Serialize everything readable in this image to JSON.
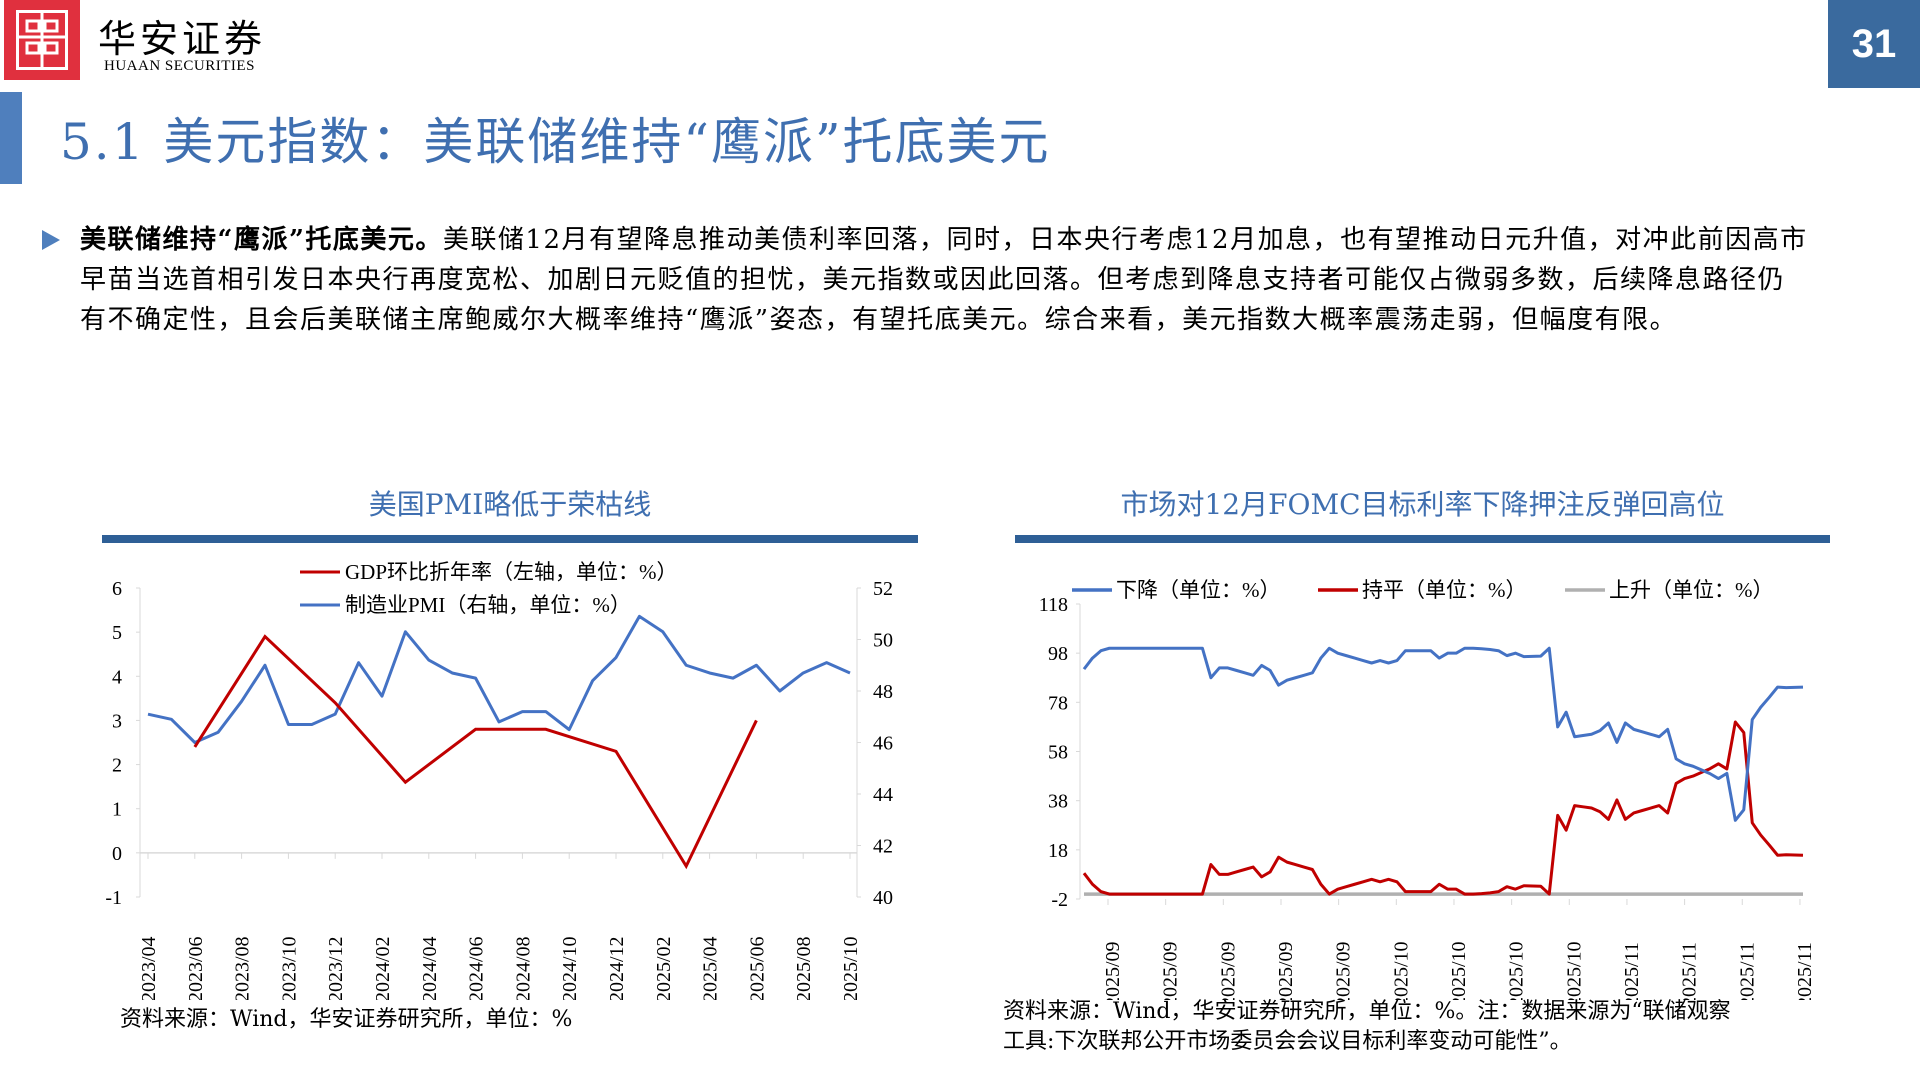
{
  "header": {
    "logo_cn": "华安证券",
    "logo_en": "HUAAN SECURITIES",
    "page_number": "31",
    "brand_color": "#e0303e",
    "accent_color": "#3a6a9e"
  },
  "title": "5.1 美元指数：美联储维持“鹰派”托底美元",
  "paragraph": {
    "lead": "美联储维持“鹰派”托底美元。",
    "body": "美联储12月有望降息推动美债利率回落，同时，日本央行考虑12月加息，也有望推动日元升值，对冲此前因高市早苗当选首相引发日本央行再度宽松、加剧日元贬值的担忧，美元指数或因此回落。但考虑到降息支持者可能仅占微弱多数，后续降息路径仍有不确定性，且会后美联储主席鲍威尔大概率维持“鹰派”姿态，有望托底美元。综合来看，美元指数大概率震荡走弱，但幅度有限。"
  },
  "left_chart": {
    "title": "美国PMI略低于荣枯线",
    "legend": [
      "GDP环比折年率（左轴，单位：%）",
      "制造业PMI（右轴，单位：%）"
    ],
    "source": "资料来源：Wind，华安证券研究所，单位：%"
  },
  "right_chart": {
    "title": "市场对12月FOMC目标利率下降押注反弹回高位",
    "legend": [
      "下降（单位：%）",
      "持平（单位：%）",
      "上升（单位：%）"
    ],
    "source_line1": "资料来源：Wind，华安证券研究所，单位：%。注：数据来源为“联储观察",
    "source_line2": "工具:下次联邦公开市场委员会会议目标利率变动可能性”。"
  },
  "chart_data": [
    {
      "type": "line",
      "title": "美国PMI略低于荣枯线",
      "x_tick_labels": [
        "2023/04",
        "2023/06",
        "2023/08",
        "2023/10",
        "2023/12",
        "2024/02",
        "2024/04",
        "2024/06",
        "2024/08",
        "2024/10",
        "2024/12",
        "2025/02",
        "2025/04",
        "2025/06",
        "2025/08",
        "2025/10"
      ],
      "x": [
        "2023/04",
        "2023/05",
        "2023/06",
        "2023/07",
        "2023/08",
        "2023/09",
        "2023/10",
        "2023/11",
        "2023/12",
        "2024/01",
        "2024/02",
        "2024/03",
        "2024/04",
        "2024/05",
        "2024/06",
        "2024/07",
        "2024/08",
        "2024/09",
        "2024/10",
        "2024/11",
        "2024/12",
        "2025/01",
        "2025/02",
        "2025/03",
        "2025/04",
        "2025/05",
        "2025/06",
        "2025/07",
        "2025/08",
        "2025/09",
        "2025/10"
      ],
      "series": [
        {
          "name": "GDP环比折年率（左轴，单位：%）",
          "axis": "left",
          "color": "#c00000",
          "points": [
            [
              "2023/06",
              2.4
            ],
            [
              "2023/09",
              4.9
            ],
            [
              "2023/12",
              3.4
            ],
            [
              "2024/03",
              1.6
            ],
            [
              "2024/06",
              2.8
            ],
            [
              "2024/09",
              2.8
            ],
            [
              "2024/12",
              2.3
            ],
            [
              "2025/03",
              -0.3
            ],
            [
              "2025/06",
              3.0
            ]
          ]
        },
        {
          "name": "制造业PMI（右轴，单位：%）",
          "axis": "right",
          "color": "#4472c4",
          "values": [
            47.1,
            46.9,
            46.0,
            46.4,
            47.6,
            49.0,
            46.7,
            46.7,
            47.1,
            49.1,
            47.8,
            50.3,
            49.2,
            48.7,
            48.5,
            46.8,
            47.2,
            47.2,
            46.5,
            48.4,
            49.3,
            50.9,
            50.3,
            49.0,
            48.7,
            48.5,
            49.0,
            48.0,
            48.7,
            49.1,
            48.7
          ]
        }
      ],
      "ylim_left": [
        -1,
        6
      ],
      "yticks_left": [
        -1,
        0,
        1,
        2,
        3,
        4,
        5,
        6
      ],
      "ylim_right": [
        40,
        52
      ],
      "yticks_right": [
        40,
        42,
        44,
        46,
        48,
        50,
        52
      ],
      "legend_position": "top",
      "grid": false
    },
    {
      "type": "line",
      "title": "市场对12月FOMC目标利率下降押注反弹回高位",
      "x_tick_labels": [
        "2025/09",
        "2025/09",
        "2025/09",
        "2025/09",
        "2025/09",
        "2025/10",
        "2025/10",
        "2025/10",
        "2025/10",
        "2025/11",
        "2025/11",
        "2025/11",
        "2025/11"
      ],
      "series": [
        {
          "name": "下降（单位：%）",
          "color": "#4472c4",
          "values": [
            91.5,
            96,
            99,
            100,
            100,
            100,
            100,
            100,
            100,
            100,
            100,
            100,
            100,
            100,
            100,
            88,
            92,
            92,
            91,
            90,
            89,
            93,
            91,
            85,
            87,
            88,
            89,
            90,
            96,
            100,
            98,
            97,
            96,
            95,
            94,
            95,
            94,
            95,
            99,
            99,
            99,
            99,
            96,
            98,
            98,
            100,
            100,
            99.8,
            99.5,
            99,
            97,
            98,
            96.6,
            96.7,
            96.8,
            100,
            68,
            74,
            64,
            64.5,
            65,
            66.5,
            69.6,
            61.7,
            69.6,
            67,
            66,
            65,
            64,
            67,
            55,
            53,
            52,
            50.5,
            49,
            47,
            49.1,
            30,
            34.3,
            71,
            76,
            80,
            84.2,
            84,
            84.1,
            84.2
          ]
        },
        {
          "name": "持平（单位：%）",
          "color": "#c00000",
          "values": [
            8.5,
            4,
            1,
            0,
            0,
            0,
            0,
            0,
            0,
            0,
            0,
            0,
            0,
            0,
            0,
            12,
            8,
            8,
            9,
            10,
            11,
            7,
            9,
            15,
            13,
            12,
            11,
            10,
            4,
            0,
            2,
            3,
            4,
            5,
            6,
            5,
            6,
            5,
            1,
            1,
            1,
            1,
            4,
            2,
            2,
            0,
            0,
            0.2,
            0.5,
            1,
            3,
            2,
            3.4,
            3.3,
            3.2,
            0,
            32,
            26,
            36,
            35.5,
            35,
            33.5,
            30.4,
            38.3,
            30.4,
            33,
            34,
            35,
            36,
            33,
            45,
            47,
            48,
            49.5,
            51,
            53,
            50.9,
            70,
            65.7,
            29,
            24,
            20,
            15.8,
            16,
            15.9,
            15.8
          ]
        },
        {
          "name": "上升（单位：%）",
          "color": "#b0b0b0",
          "values": "≈0 throughout"
        }
      ],
      "ylim": [
        -2,
        118
      ],
      "yticks": [
        -2,
        18,
        38,
        58,
        78,
        98,
        118
      ],
      "legend_position": "top",
      "grid": false
    }
  ]
}
